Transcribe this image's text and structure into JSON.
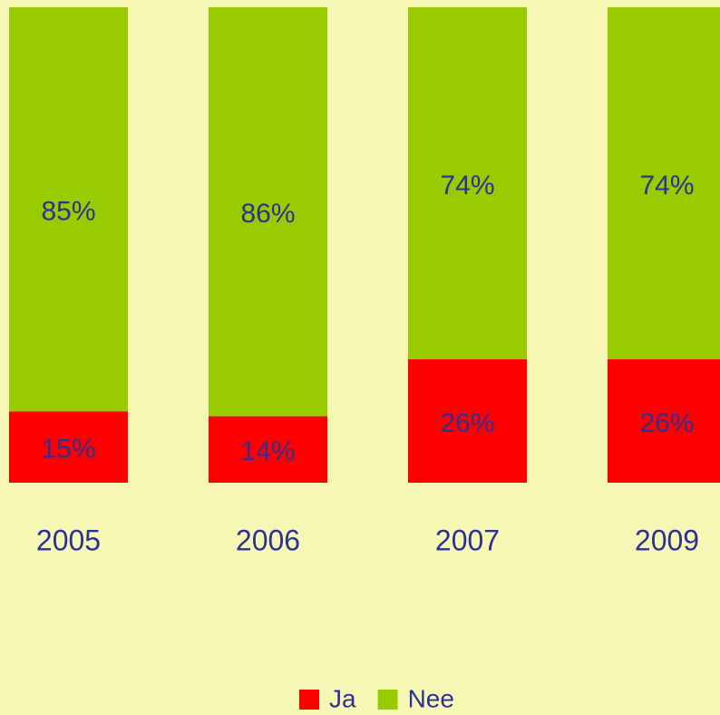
{
  "chart_data": {
    "type": "stacked_bar",
    "categories": [
      "2005",
      "2006",
      "2007",
      "2009"
    ],
    "series": [
      {
        "name": "Ja",
        "color": "#ff0000",
        "values": [
          15,
          14,
          26,
          26
        ],
        "value_labels": [
          "15%",
          "14%",
          "26%",
          "26%"
        ]
      },
      {
        "name": "Nee",
        "color": "#99cc00",
        "values": [
          85,
          86,
          74,
          74
        ],
        "value_labels": [
          "85%",
          "86%",
          "74%",
          "74%"
        ]
      }
    ],
    "ylim": [
      0,
      100
    ]
  }
}
